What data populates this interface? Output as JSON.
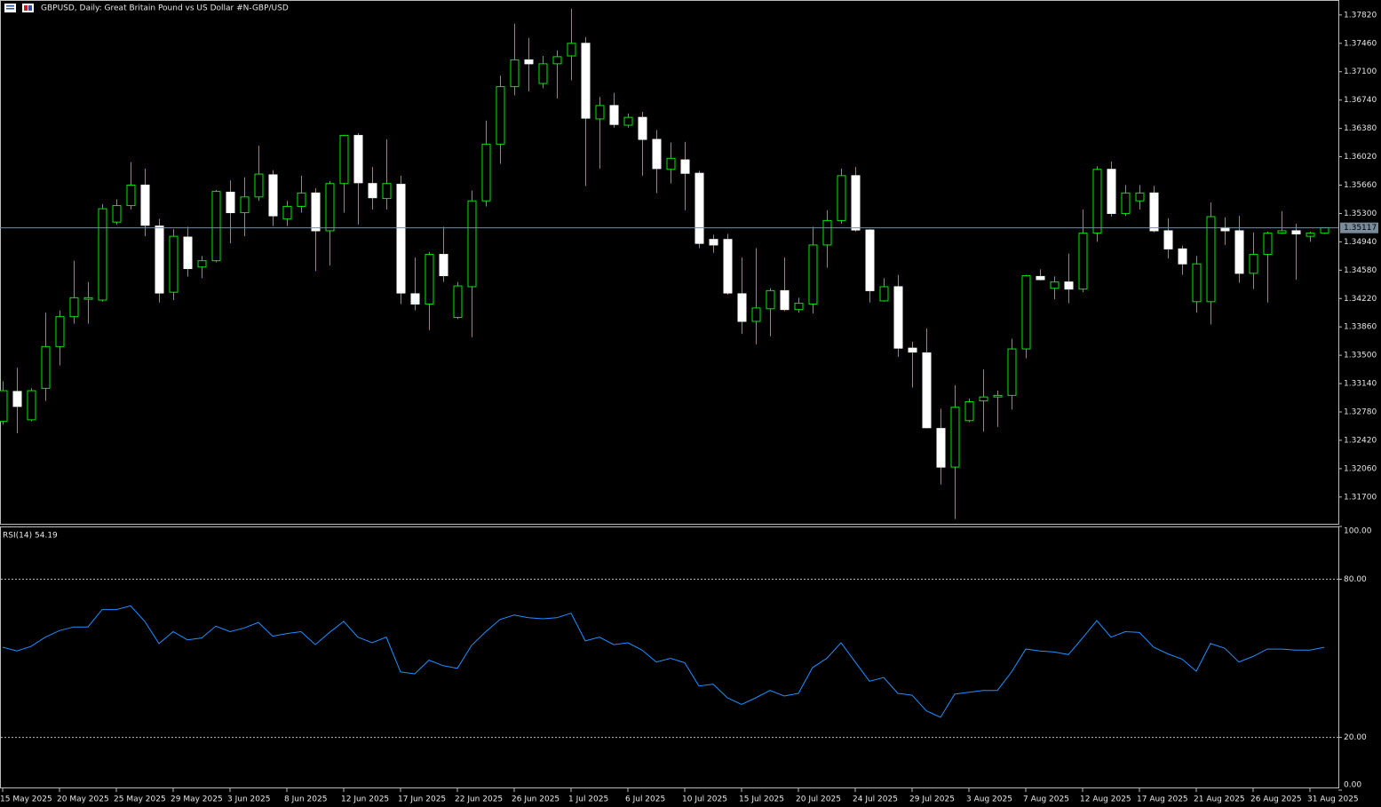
{
  "chart_data": [
    {
      "type": "candlestick",
      "title": "GBPUSD, Daily:  Great Britain Pound vs US Dollar #N-GBP/USD",
      "categories": [
        "15 May 2025",
        null,
        null,
        null,
        "20 May 2025",
        null,
        null,
        null,
        "25 May 2025",
        null,
        null,
        null,
        "29 May 2025",
        null,
        null,
        null,
        "3 Jun 2025",
        null,
        null,
        null,
        "8 Jun 2025",
        null,
        null,
        null,
        "12 Jun 2025",
        null,
        null,
        null,
        "17 Jun 2025",
        null,
        null,
        null,
        "22 Jun 2025",
        null,
        null,
        null,
        "26 Jun 2025",
        null,
        null,
        null,
        "1 Jul 2025",
        null,
        null,
        null,
        "6 Jul 2025",
        null,
        null,
        null,
        "10 Jul 2025",
        null,
        null,
        null,
        "15 Jul 2025",
        null,
        null,
        null,
        "20 Jul 2025",
        null,
        null,
        null,
        "24 Jul 2025",
        null,
        null,
        null,
        "29 Jul 2025",
        null,
        null,
        null,
        "3 Aug 2025",
        null,
        null,
        null,
        "7 Aug 2025",
        null,
        null,
        null,
        "12 Aug 2025",
        null,
        null,
        null,
        "17 Aug 2025",
        null,
        null,
        null,
        "21 Aug 2025",
        null,
        null,
        null,
        "26 Aug 2025",
        null,
        null,
        null,
        "31 Aug 2025",
        null
      ],
      "open": [
        1.3266,
        1.3304,
        1.3268,
        1.3308,
        1.3361,
        1.3399,
        1.3421,
        1.342,
        1.3519,
        1.354,
        1.3566,
        1.3514,
        1.343,
        1.35,
        1.3462,
        1.347,
        1.3557,
        1.3531,
        1.3551,
        1.3579,
        1.3523,
        1.3539,
        1.3556,
        1.3508,
        1.3568,
        1.3629,
        1.3568,
        1.3549,
        1.3567,
        1.3428,
        1.3415,
        1.3478,
        1.3398,
        1.3437,
        1.3546,
        1.3618,
        1.3691,
        1.3725,
        1.3695,
        1.372,
        1.373,
        1.3746,
        1.365,
        1.3667,
        1.3642,
        1.3652,
        1.3624,
        1.3586,
        1.3598,
        1.3581,
        1.3497,
        1.3497,
        1.3428,
        1.3393,
        1.3409,
        1.3432,
        1.3408,
        1.3415,
        1.349,
        1.3521,
        1.3578,
        1.3509,
        1.3419,
        1.3437,
        1.3359,
        1.3353,
        1.3257,
        1.3208,
        1.3267,
        1.3292,
        1.3297,
        1.3299,
        1.3358,
        1.345,
        1.3435,
        1.3443,
        1.3434,
        1.3505,
        1.3586,
        1.353,
        1.3546,
        1.3556,
        1.3508,
        1.3485,
        1.3418,
        1.3418,
        1.3512,
        1.3508,
        1.3454,
        1.3478,
        1.3505,
        1.3508,
        1.3501,
        1.3505
      ],
      "high": [
        1.3317,
        1.3334,
        1.3308,
        1.3404,
        1.3407,
        1.347,
        1.3443,
        1.3542,
        1.3548,
        1.3595,
        1.3587,
        1.3523,
        1.351,
        1.3513,
        1.3476,
        1.356,
        1.3572,
        1.3576,
        1.3616,
        1.3585,
        1.3546,
        1.3578,
        1.3562,
        1.3571,
        1.363,
        1.3632,
        1.3589,
        1.3624,
        1.3578,
        1.3474,
        1.3481,
        1.3513,
        1.3443,
        1.3559,
        1.3648,
        1.3705,
        1.3771,
        1.3753,
        1.373,
        1.3737,
        1.379,
        1.3754,
        1.3678,
        1.3683,
        1.3657,
        1.3659,
        1.3636,
        1.362,
        1.3621,
        1.3584,
        1.3503,
        1.3504,
        1.3474,
        1.3486,
        1.3435,
        1.3474,
        1.3423,
        1.3513,
        1.3534,
        1.3587,
        1.3589,
        1.351,
        1.3448,
        1.3452,
        1.3367,
        1.3384,
        1.3282,
        1.3312,
        1.3295,
        1.3332,
        1.3305,
        1.3371,
        1.3452,
        1.3459,
        1.345,
        1.3479,
        1.3535,
        1.359,
        1.3596,
        1.3566,
        1.3566,
        1.3565,
        1.3524,
        1.3489,
        1.3476,
        1.3544,
        1.3525,
        1.3527,
        1.3506,
        1.3507,
        1.3533,
        1.3517,
        1.3507,
        1.3512
      ],
      "low": [
        1.3262,
        1.3251,
        1.3266,
        1.3292,
        1.3337,
        1.339,
        1.339,
        1.3418,
        1.3516,
        1.3535,
        1.3501,
        1.3417,
        1.342,
        1.345,
        1.3448,
        1.3468,
        1.3492,
        1.3501,
        1.3546,
        1.3514,
        1.3514,
        1.3531,
        1.3457,
        1.3464,
        1.3531,
        1.3516,
        1.3535,
        1.3535,
        1.3415,
        1.3407,
        1.3382,
        1.3443,
        1.3396,
        1.3373,
        1.3539,
        1.3593,
        1.368,
        1.3685,
        1.3689,
        1.3676,
        1.3699,
        1.3565,
        1.3587,
        1.3639,
        1.3639,
        1.3578,
        1.3556,
        1.3568,
        1.3534,
        1.3486,
        1.348,
        1.3427,
        1.3377,
        1.3364,
        1.3374,
        1.3406,
        1.3404,
        1.3403,
        1.3461,
        1.3517,
        1.3507,
        1.3417,
        1.3418,
        1.3348,
        1.3309,
        1.3257,
        1.3186,
        1.3142,
        1.3265,
        1.3253,
        1.3259,
        1.3281,
        1.3346,
        1.3445,
        1.3421,
        1.3416,
        1.343,
        1.3494,
        1.3526,
        1.3527,
        1.3535,
        1.3506,
        1.3473,
        1.3452,
        1.3404,
        1.3389,
        1.349,
        1.3442,
        1.3434,
        1.3417,
        1.3504,
        1.3446,
        1.3494,
        1.3504
      ],
      "close": [
        1.3305,
        1.3285,
        1.3305,
        1.3361,
        1.3399,
        1.3423,
        1.3423,
        1.3536,
        1.354,
        1.3566,
        1.3515,
        1.3429,
        1.3501,
        1.346,
        1.347,
        1.3558,
        1.3531,
        1.3551,
        1.358,
        1.3527,
        1.3539,
        1.3556,
        1.3508,
        1.3568,
        1.3629,
        1.3569,
        1.355,
        1.3568,
        1.3429,
        1.3415,
        1.3478,
        1.3451,
        1.3438,
        1.3546,
        1.3618,
        1.3691,
        1.3725,
        1.372,
        1.372,
        1.3729,
        1.3746,
        1.3651,
        1.3667,
        1.3643,
        1.3652,
        1.3624,
        1.3587,
        1.36,
        1.3581,
        1.3492,
        1.349,
        1.3429,
        1.3393,
        1.341,
        1.3432,
        1.3408,
        1.3416,
        1.349,
        1.3521,
        1.3578,
        1.3509,
        1.3432,
        1.3437,
        1.3359,
        1.3354,
        1.3258,
        1.3208,
        1.3284,
        1.3291,
        1.3297,
        1.3299,
        1.3358,
        1.3451,
        1.3446,
        1.3443,
        1.3434,
        1.3505,
        1.3586,
        1.353,
        1.3556,
        1.3556,
        1.3508,
        1.3485,
        1.3466,
        1.3466,
        1.3526,
        1.3508,
        1.3454,
        1.3478,
        1.3505,
        1.3508,
        1.3504,
        1.3505,
        1.3512
      ],
      "up_color": "#00e600",
      "down_color": "#ffffff",
      "wick_color": "#00e600",
      "ylim": [
        1.3136,
        1.3801
      ],
      "yticks": [
        {
          "value": 1.3782,
          "label": "1.37820"
        },
        {
          "value": 1.3746,
          "label": "1.37460"
        },
        {
          "value": 1.371,
          "label": "1.37100"
        },
        {
          "value": 1.3674,
          "label": "1.36740"
        },
        {
          "value": 1.3638,
          "label": "1.36380"
        },
        {
          "value": 1.3602,
          "label": "1.36020"
        },
        {
          "value": 1.3566,
          "label": "1.35660"
        },
        {
          "value": 1.353,
          "label": "1.35300"
        },
        {
          "value": 1.3494,
          "label": "1.34940"
        },
        {
          "value": 1.3458,
          "label": "1.34580"
        },
        {
          "value": 1.3422,
          "label": "1.34220"
        },
        {
          "value": 1.3386,
          "label": "1.33860"
        },
        {
          "value": 1.335,
          "label": "1.33500"
        },
        {
          "value": 1.3314,
          "label": "1.33140"
        },
        {
          "value": 1.3278,
          "label": "1.32780"
        },
        {
          "value": 1.3242,
          "label": "1.32420"
        },
        {
          "value": 1.3206,
          "label": "1.32060"
        },
        {
          "value": 1.317,
          "label": "1.31700"
        }
      ],
      "current_price": {
        "value": 1.35117,
        "label": "1.35117"
      },
      "grid": false
    },
    {
      "type": "line",
      "label": "RSI(14)",
      "values": [
        54.2,
        52.8,
        54.5,
        58.0,
        60.5,
        61.9,
        61.9,
        68.5,
        68.5,
        69.9,
        64.0,
        55.6,
        60.1,
        57.0,
        57.7,
        62.2,
        60.1,
        61.5,
        63.6,
        58.4,
        59.4,
        60.1,
        55.2,
        59.8,
        64.0,
        58.0,
        55.9,
        58.0,
        44.8,
        44.1,
        49.3,
        47.2,
        46.2,
        54.9,
        60.1,
        64.7,
        66.4,
        65.4,
        65.0,
        65.4,
        67.1,
        56.6,
        58.0,
        55.2,
        55.9,
        53.1,
        48.6,
        50.0,
        48.3,
        39.5,
        40.2,
        35.0,
        32.5,
        35.0,
        37.8,
        35.7,
        36.7,
        46.5,
        50.0,
        55.9,
        48.6,
        41.3,
        42.7,
        36.7,
        36.0,
        30.1,
        27.6,
        36.4,
        37.1,
        37.8,
        37.8,
        44.8,
        53.5,
        52.8,
        52.4,
        51.4,
        57.7,
        64.3,
        58.0,
        60.1,
        59.8,
        54.2,
        51.7,
        49.7,
        45.1,
        55.6,
        53.8,
        48.6,
        50.7,
        53.5,
        53.5,
        53.1,
        53.1,
        54.19
      ],
      "color": "#1e90ff",
      "ylim": [
        0,
        100
      ],
      "yticks": [
        {
          "value": 100,
          "label": "100.00"
        },
        {
          "value": 80,
          "label": "80.00"
        },
        {
          "value": 20,
          "label": "20.00"
        },
        {
          "value": 0,
          "label": "0.00"
        }
      ],
      "levels": [
        80,
        20
      ]
    }
  ]
}
